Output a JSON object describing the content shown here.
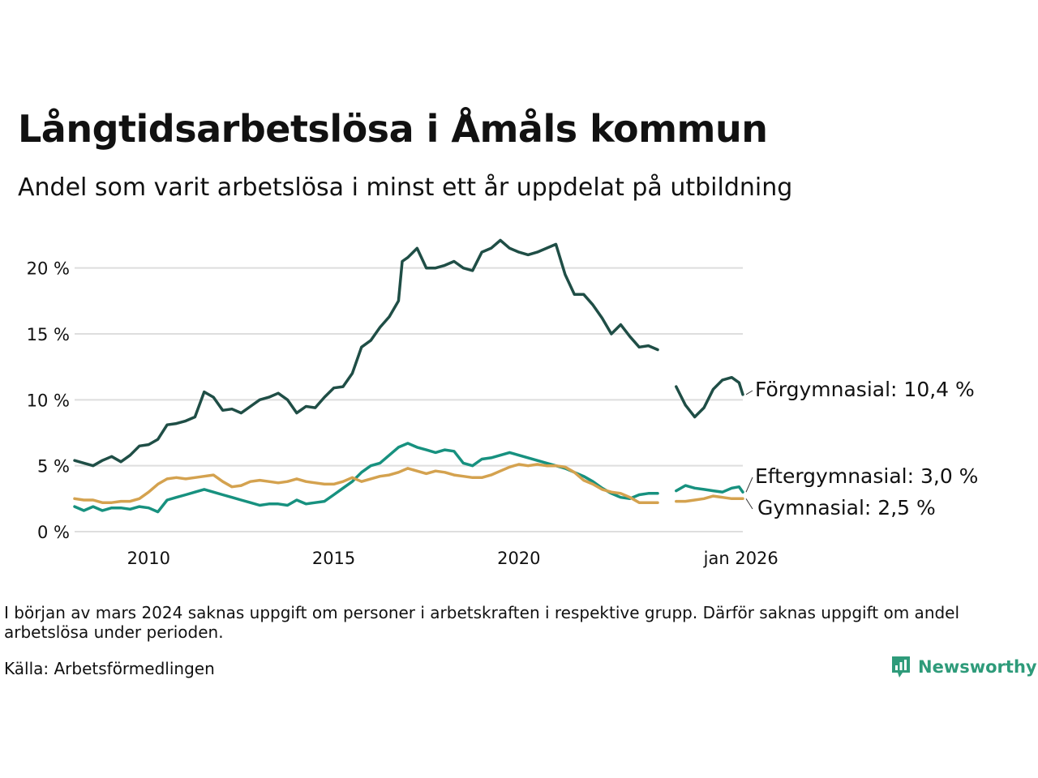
{
  "title": "Långtidsarbetslösa i Åmåls kommun",
  "subtitle": "Andel som varit arbetslösa i minst ett år uppdelat på utbildning",
  "footnote": "I början av mars 2024 saknas uppgift om personer i arbetskraften i respektive grupp. Därför saknas uppgift om andel arbetslösa under perioden.",
  "source": "Källa: Arbetsförmedlingen",
  "brand": "Newsworthy",
  "colors": {
    "forgymnasial": "#1f4e46",
    "eftergymnasial": "#17917f",
    "gymnasial": "#d4a24f",
    "grid": "#dedede",
    "brand": "#2e9b7a"
  },
  "chart_data": {
    "type": "line",
    "title": "Långtidsarbetslösa i Åmåls kommun",
    "xlabel": "",
    "ylabel": "",
    "xlim": [
      2008.0,
      2026.05
    ],
    "ylim": [
      0,
      22.5
    ],
    "x_ticks": [
      {
        "x": 2010,
        "label": "2010"
      },
      {
        "x": 2015,
        "label": "2015"
      },
      {
        "x": 2020,
        "label": "2020"
      },
      {
        "x": 2026.0,
        "label": "jan 2026"
      }
    ],
    "y_ticks": [
      {
        "y": 0,
        "label": "0 %"
      },
      {
        "y": 5,
        "label": "5 %"
      },
      {
        "y": 10,
        "label": "10 %"
      },
      {
        "y": 15,
        "label": "15 %"
      },
      {
        "y": 20,
        "label": "20 %"
      }
    ],
    "gap": [
      2023.9,
      2024.25
    ],
    "series": [
      {
        "name": "Förgymnasial",
        "label": "Förgymnasial: 10,4 %",
        "color": "#1f4e46",
        "points": [
          [
            2008.0,
            5.4
          ],
          [
            2008.25,
            5.2
          ],
          [
            2008.5,
            5.0
          ],
          [
            2008.75,
            5.4
          ],
          [
            2009.0,
            5.7
          ],
          [
            2009.25,
            5.3
          ],
          [
            2009.5,
            5.8
          ],
          [
            2009.75,
            6.5
          ],
          [
            2010.0,
            6.6
          ],
          [
            2010.25,
            7.0
          ],
          [
            2010.5,
            8.1
          ],
          [
            2010.75,
            8.2
          ],
          [
            2011.0,
            8.4
          ],
          [
            2011.25,
            8.7
          ],
          [
            2011.5,
            10.6
          ],
          [
            2011.75,
            10.2
          ],
          [
            2012.0,
            9.2
          ],
          [
            2012.25,
            9.3
          ],
          [
            2012.5,
            9.0
          ],
          [
            2012.75,
            9.5
          ],
          [
            2013.0,
            10.0
          ],
          [
            2013.25,
            10.2
          ],
          [
            2013.5,
            10.5
          ],
          [
            2013.75,
            10.0
          ],
          [
            2014.0,
            9.0
          ],
          [
            2014.25,
            9.5
          ],
          [
            2014.5,
            9.4
          ],
          [
            2014.75,
            10.2
          ],
          [
            2015.0,
            10.9
          ],
          [
            2015.25,
            11.0
          ],
          [
            2015.5,
            12.0
          ],
          [
            2015.75,
            14.0
          ],
          [
            2016.0,
            14.5
          ],
          [
            2016.25,
            15.5
          ],
          [
            2016.5,
            16.3
          ],
          [
            2016.75,
            17.5
          ],
          [
            2016.85,
            20.5
          ],
          [
            2017.0,
            20.8
          ],
          [
            2017.25,
            21.5
          ],
          [
            2017.5,
            20.0
          ],
          [
            2017.75,
            20.0
          ],
          [
            2018.0,
            20.2
          ],
          [
            2018.25,
            20.5
          ],
          [
            2018.5,
            20.0
          ],
          [
            2018.75,
            19.8
          ],
          [
            2019.0,
            21.2
          ],
          [
            2019.25,
            21.5
          ],
          [
            2019.5,
            22.1
          ],
          [
            2019.75,
            21.5
          ],
          [
            2020.0,
            21.2
          ],
          [
            2020.25,
            21.0
          ],
          [
            2020.5,
            21.2
          ],
          [
            2020.75,
            21.5
          ],
          [
            2021.0,
            21.8
          ],
          [
            2021.25,
            19.5
          ],
          [
            2021.5,
            18.0
          ],
          [
            2021.75,
            18.0
          ],
          [
            2022.0,
            17.2
          ],
          [
            2022.25,
            16.2
          ],
          [
            2022.5,
            15.0
          ],
          [
            2022.75,
            15.7
          ],
          [
            2023.0,
            14.8
          ],
          [
            2023.25,
            14.0
          ],
          [
            2023.5,
            14.1
          ],
          [
            2023.75,
            13.8
          ],
          [
            2024.25,
            11.0
          ],
          [
            2024.5,
            9.6
          ],
          [
            2024.75,
            8.7
          ],
          [
            2025.0,
            9.4
          ],
          [
            2025.25,
            10.8
          ],
          [
            2025.5,
            11.5
          ],
          [
            2025.75,
            11.7
          ],
          [
            2025.95,
            11.3
          ],
          [
            2026.05,
            10.4
          ]
        ]
      },
      {
        "name": "Eftergymnasial",
        "label": "Eftergymnasial:  3,0 %",
        "color": "#17917f",
        "points": [
          [
            2008.0,
            1.9
          ],
          [
            2008.25,
            1.6
          ],
          [
            2008.5,
            1.9
          ],
          [
            2008.75,
            1.6
          ],
          [
            2009.0,
            1.8
          ],
          [
            2009.25,
            1.8
          ],
          [
            2009.5,
            1.7
          ],
          [
            2009.75,
            1.9
          ],
          [
            2010.0,
            1.8
          ],
          [
            2010.25,
            1.5
          ],
          [
            2010.5,
            2.4
          ],
          [
            2010.75,
            2.6
          ],
          [
            2011.0,
            2.8
          ],
          [
            2011.25,
            3.0
          ],
          [
            2011.5,
            3.2
          ],
          [
            2011.75,
            3.0
          ],
          [
            2012.0,
            2.8
          ],
          [
            2012.25,
            2.6
          ],
          [
            2012.5,
            2.4
          ],
          [
            2012.75,
            2.2
          ],
          [
            2013.0,
            2.0
          ],
          [
            2013.25,
            2.1
          ],
          [
            2013.5,
            2.1
          ],
          [
            2013.75,
            2.0
          ],
          [
            2014.0,
            2.4
          ],
          [
            2014.25,
            2.1
          ],
          [
            2014.5,
            2.2
          ],
          [
            2014.75,
            2.3
          ],
          [
            2015.0,
            2.8
          ],
          [
            2015.25,
            3.3
          ],
          [
            2015.5,
            3.8
          ],
          [
            2015.75,
            4.5
          ],
          [
            2016.0,
            5.0
          ],
          [
            2016.25,
            5.2
          ],
          [
            2016.5,
            5.8
          ],
          [
            2016.75,
            6.4
          ],
          [
            2017.0,
            6.7
          ],
          [
            2017.25,
            6.4
          ],
          [
            2017.5,
            6.2
          ],
          [
            2017.75,
            6.0
          ],
          [
            2018.0,
            6.2
          ],
          [
            2018.25,
            6.1
          ],
          [
            2018.5,
            5.2
          ],
          [
            2018.75,
            5.0
          ],
          [
            2019.0,
            5.5
          ],
          [
            2019.25,
            5.6
          ],
          [
            2019.5,
            5.8
          ],
          [
            2019.75,
            6.0
          ],
          [
            2020.0,
            5.8
          ],
          [
            2020.25,
            5.6
          ],
          [
            2020.5,
            5.4
          ],
          [
            2020.75,
            5.2
          ],
          [
            2021.0,
            5.0
          ],
          [
            2021.25,
            4.8
          ],
          [
            2021.5,
            4.5
          ],
          [
            2021.75,
            4.2
          ],
          [
            2022.0,
            3.8
          ],
          [
            2022.25,
            3.3
          ],
          [
            2022.5,
            2.9
          ],
          [
            2022.75,
            2.6
          ],
          [
            2023.0,
            2.5
          ],
          [
            2023.25,
            2.8
          ],
          [
            2023.5,
            2.9
          ],
          [
            2023.75,
            2.9
          ],
          [
            2024.25,
            3.1
          ],
          [
            2024.5,
            3.5
          ],
          [
            2024.75,
            3.3
          ],
          [
            2025.0,
            3.2
          ],
          [
            2025.25,
            3.1
          ],
          [
            2025.5,
            3.0
          ],
          [
            2025.75,
            3.3
          ],
          [
            2025.95,
            3.4
          ],
          [
            2026.05,
            3.0
          ]
        ]
      },
      {
        "name": "Gymnasial",
        "label": "Gymnasial:  2,5 %",
        "color": "#d4a24f",
        "points": [
          [
            2008.0,
            2.5
          ],
          [
            2008.25,
            2.4
          ],
          [
            2008.5,
            2.4
          ],
          [
            2008.75,
            2.2
          ],
          [
            2009.0,
            2.2
          ],
          [
            2009.25,
            2.3
          ],
          [
            2009.5,
            2.3
          ],
          [
            2009.75,
            2.5
          ],
          [
            2010.0,
            3.0
          ],
          [
            2010.25,
            3.6
          ],
          [
            2010.5,
            4.0
          ],
          [
            2010.75,
            4.1
          ],
          [
            2011.0,
            4.0
          ],
          [
            2011.25,
            4.1
          ],
          [
            2011.5,
            4.2
          ],
          [
            2011.75,
            4.3
          ],
          [
            2012.0,
            3.8
          ],
          [
            2012.25,
            3.4
          ],
          [
            2012.5,
            3.5
          ],
          [
            2012.75,
            3.8
          ],
          [
            2013.0,
            3.9
          ],
          [
            2013.25,
            3.8
          ],
          [
            2013.5,
            3.7
          ],
          [
            2013.75,
            3.8
          ],
          [
            2014.0,
            4.0
          ],
          [
            2014.25,
            3.8
          ],
          [
            2014.5,
            3.7
          ],
          [
            2014.75,
            3.6
          ],
          [
            2015.0,
            3.6
          ],
          [
            2015.25,
            3.8
          ],
          [
            2015.5,
            4.1
          ],
          [
            2015.75,
            3.8
          ],
          [
            2016.0,
            4.0
          ],
          [
            2016.25,
            4.2
          ],
          [
            2016.5,
            4.3
          ],
          [
            2016.75,
            4.5
          ],
          [
            2017.0,
            4.8
          ],
          [
            2017.25,
            4.6
          ],
          [
            2017.5,
            4.4
          ],
          [
            2017.75,
            4.6
          ],
          [
            2018.0,
            4.5
          ],
          [
            2018.25,
            4.3
          ],
          [
            2018.5,
            4.2
          ],
          [
            2018.75,
            4.1
          ],
          [
            2019.0,
            4.1
          ],
          [
            2019.25,
            4.3
          ],
          [
            2019.5,
            4.6
          ],
          [
            2019.75,
            4.9
          ],
          [
            2020.0,
            5.1
          ],
          [
            2020.25,
            5.0
          ],
          [
            2020.5,
            5.1
          ],
          [
            2020.75,
            5.0
          ],
          [
            2021.0,
            5.0
          ],
          [
            2021.25,
            4.9
          ],
          [
            2021.5,
            4.5
          ],
          [
            2021.75,
            3.9
          ],
          [
            2022.0,
            3.6
          ],
          [
            2022.25,
            3.2
          ],
          [
            2022.5,
            3.0
          ],
          [
            2022.75,
            2.9
          ],
          [
            2023.0,
            2.6
          ],
          [
            2023.25,
            2.2
          ],
          [
            2023.5,
            2.2
          ],
          [
            2023.75,
            2.2
          ],
          [
            2024.25,
            2.3
          ],
          [
            2024.5,
            2.3
          ],
          [
            2024.75,
            2.4
          ],
          [
            2025.0,
            2.5
          ],
          [
            2025.25,
            2.7
          ],
          [
            2025.5,
            2.6
          ],
          [
            2025.75,
            2.5
          ],
          [
            2026.05,
            2.5
          ]
        ]
      }
    ]
  }
}
